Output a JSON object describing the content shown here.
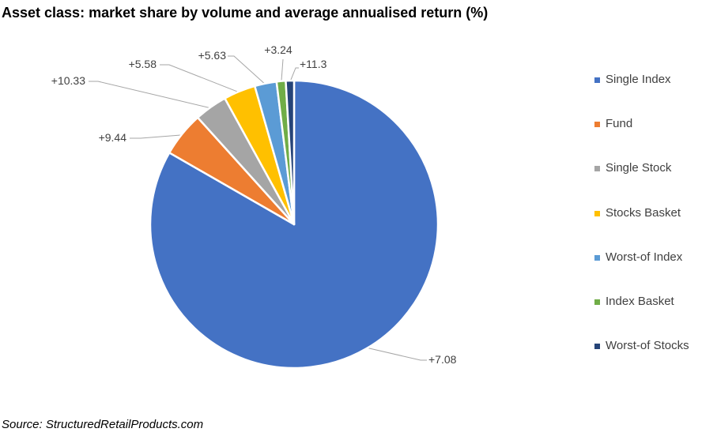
{
  "title": "Asset class: market share by volume and average annualised return (%)",
  "source": "Source: StructuredRetailProducts.com",
  "chart_data": {
    "type": "pie",
    "title": "Asset class: market share by volume and average annualised return (%)",
    "legend_position": "right",
    "slices": [
      {
        "name": "Single Index",
        "share": 81.3,
        "label": "+7.08",
        "color": "#4472C4"
      },
      {
        "name": "Fund",
        "share": 4.9,
        "label": "+9.44",
        "color": "#ED7D31"
      },
      {
        "name": "Single Stock",
        "share": 3.6,
        "label": "+10.33",
        "color": "#A5A5A5"
      },
      {
        "name": "Stocks Basket",
        "share": 3.5,
        "label": "+5.58",
        "color": "#FFC000"
      },
      {
        "name": "Worst-of Index",
        "share": 2.4,
        "label": "+5.63",
        "color": "#5B9BD5"
      },
      {
        "name": "Index Basket",
        "share": 1.0,
        "label": "+3.24",
        "color": "#70AD47"
      },
      {
        "name": "Worst-of Stocks",
        "share": 0.9,
        "label": "+11.3",
        "color": "#264478"
      }
    ]
  }
}
